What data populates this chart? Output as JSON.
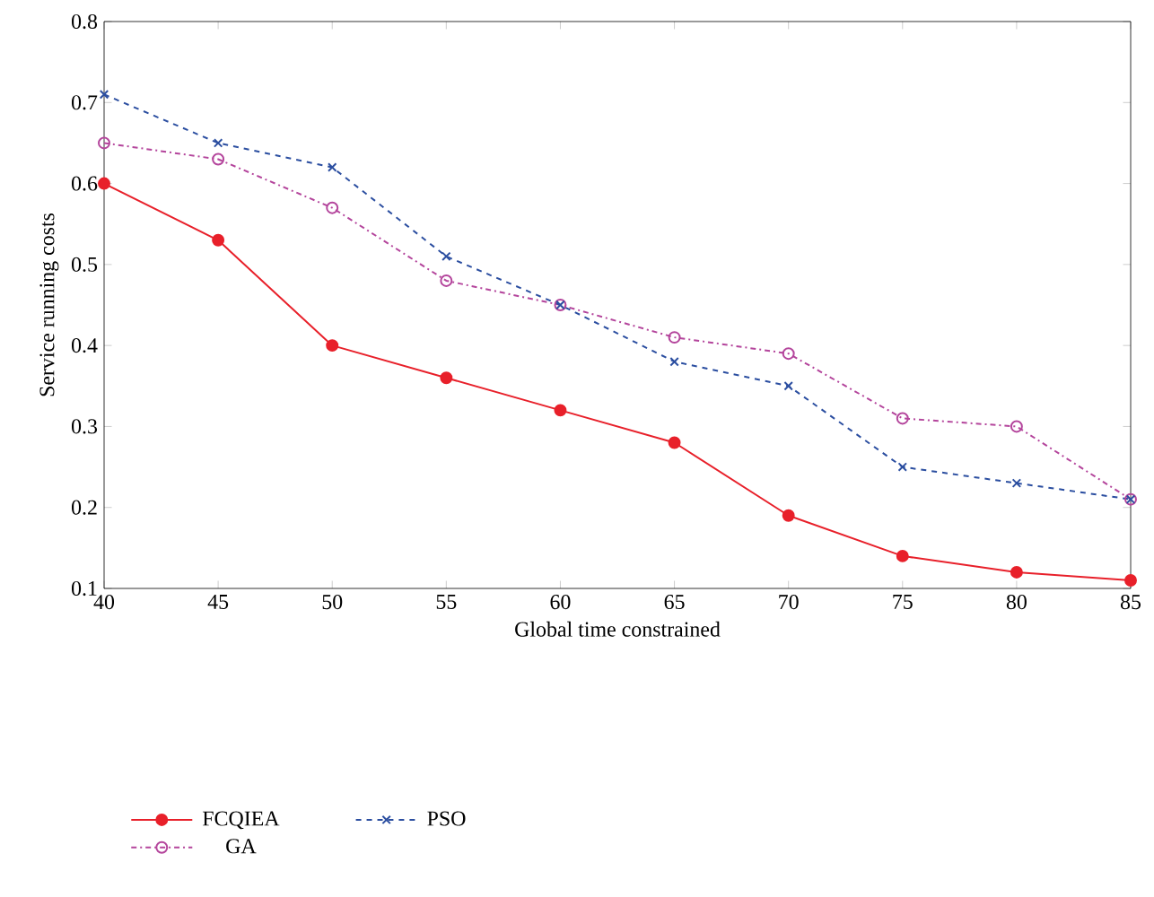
{
  "chart_data": {
    "type": "line",
    "xlabel": "Global time constrained",
    "ylabel": "Service running costs",
    "x": [
      40,
      45,
      50,
      55,
      60,
      65,
      70,
      75,
      80,
      85
    ],
    "series": [
      {
        "name": "FCQIEA",
        "color": "#e8202a",
        "marker": "circle",
        "line_style": "solid",
        "values": [
          0.6,
          0.53,
          0.4,
          0.36,
          0.32,
          0.28,
          0.19,
          0.14,
          0.12,
          0.11
        ]
      },
      {
        "name": "GA",
        "color": "#b4459c",
        "marker": "circle",
        "line_style": "dashdot",
        "values": [
          0.65,
          0.63,
          0.57,
          0.48,
          0.45,
          0.41,
          0.39,
          0.31,
          0.3,
          0.21
        ]
      },
      {
        "name": "PSO",
        "color": "#2b4ea0",
        "marker": "cross",
        "line_style": "dashed",
        "values": [
          0.71,
          0.65,
          0.62,
          0.51,
          0.45,
          0.38,
          0.35,
          0.25,
          0.23,
          0.21
        ]
      }
    ],
    "xlim": [
      40,
      85
    ],
    "xticks": [
      40,
      45,
      50,
      55,
      60,
      65,
      70,
      75,
      80,
      85
    ],
    "ylim": [
      0.1,
      0.8
    ],
    "yticks": [
      0.1,
      0.2,
      0.3,
      0.4,
      0.5,
      0.6,
      0.7,
      0.8
    ],
    "grid": false,
    "legend": "bottom left"
  }
}
